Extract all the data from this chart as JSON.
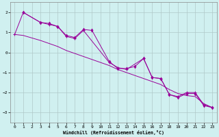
{
  "line_color": "#990099",
  "bg_color": "#d0f0f0",
  "grid_color": "#b0c8c8",
  "xlabel": "Windchill (Refroidissement éolien,°C)",
  "ylim": [
    -3.5,
    2.5
  ],
  "xlim": [
    -0.5,
    23.5
  ],
  "yticks": [
    -3,
    -2,
    -1,
    0,
    1,
    2
  ],
  "xticks": [
    0,
    1,
    2,
    3,
    4,
    5,
    6,
    7,
    8,
    9,
    10,
    11,
    12,
    13,
    14,
    15,
    16,
    17,
    18,
    19,
    20,
    21,
    22,
    23
  ],
  "xa": [
    0,
    1,
    3,
    4,
    5,
    6,
    7,
    8,
    11,
    12,
    13,
    15,
    16,
    17,
    18,
    19,
    20,
    21,
    22,
    23
  ],
  "ya": [
    0.9,
    2.0,
    1.5,
    1.4,
    1.3,
    0.8,
    0.7,
    1.1,
    -0.5,
    -0.75,
    -0.85,
    -0.3,
    -1.25,
    -1.3,
    -2.1,
    -2.2,
    -2.0,
    -2.0,
    -2.6,
    -2.75
  ],
  "xb": [
    0,
    1,
    3,
    4,
    5,
    6,
    7,
    8,
    9,
    10,
    11,
    12,
    13,
    14,
    15,
    16,
    17,
    18,
    19,
    20,
    21,
    22,
    23
  ],
  "yb": [
    0.9,
    0.85,
    0.6,
    0.45,
    0.3,
    0.1,
    -0.05,
    -0.2,
    -0.35,
    -0.5,
    -0.65,
    -0.85,
    -1.0,
    -1.15,
    -1.3,
    -1.45,
    -1.6,
    -1.85,
    -2.05,
    -2.15,
    -2.2,
    -2.55,
    -2.75
  ],
  "xc": [
    1,
    3,
    4,
    5,
    6,
    7,
    8,
    9,
    11,
    12,
    13,
    14,
    15,
    16,
    17,
    18,
    19,
    20,
    21,
    22,
    23
  ],
  "yc": [
    2.0,
    1.5,
    1.45,
    1.3,
    0.85,
    0.75,
    1.15,
    1.1,
    -0.45,
    -0.8,
    -0.8,
    -0.7,
    -0.3,
    -1.25,
    -1.3,
    -2.1,
    -2.25,
    -2.05,
    -2.05,
    -2.65,
    -2.75
  ]
}
